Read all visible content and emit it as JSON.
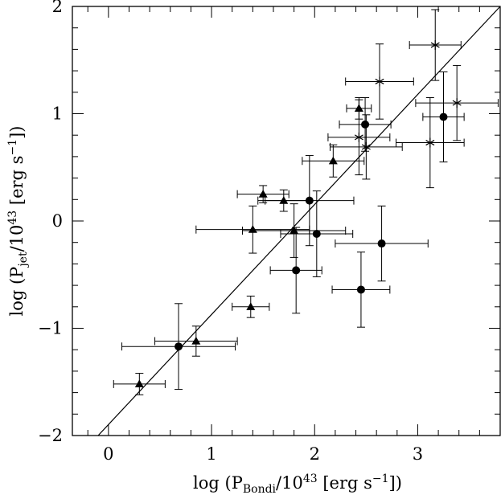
{
  "chart_data": {
    "type": "scatter",
    "xlabel": {
      "pre": "log (P",
      "sub": "Bondi",
      "mid": "/10",
      "sup1": "43",
      "post": " [erg s",
      "sup2": "−1",
      "end": "])"
    },
    "ylabel": {
      "pre": "log (P",
      "sub": "jet",
      "mid": "/10",
      "sup1": "43",
      "post": " [erg s",
      "sup2": "−1",
      "end": "])"
    },
    "xlim": [
      -0.35,
      3.8
    ],
    "ylim": [
      -2,
      2
    ],
    "xticks": [
      {
        "value": 0,
        "label": "0"
      },
      {
        "value": 1,
        "label": "1"
      },
      {
        "value": 2,
        "label": "2"
      },
      {
        "value": 3,
        "label": "3"
      }
    ],
    "yticks": [
      {
        "value": -2,
        "label": "−2"
      },
      {
        "value": -1,
        "label": "−1"
      },
      {
        "value": 0,
        "label": "0"
      },
      {
        "value": 1,
        "label": "1"
      },
      {
        "value": 2,
        "label": "2"
      }
    ],
    "fit_line": {
      "x": [
        -0.1,
        3.8
      ],
      "y": [
        -2.0,
        2.0
      ]
    },
    "series": [
      {
        "marker": "triangle",
        "points": [
          {
            "x": 0.3,
            "y": -1.52,
            "xerr": 0.25,
            "yerr": 0.1
          },
          {
            "x": 0.85,
            "y": -1.12,
            "xerr": 0.4,
            "yerr": 0.14
          },
          {
            "x": 1.38,
            "y": -0.8,
            "xerr": 0.18,
            "yerr": 0.1
          },
          {
            "x": 1.4,
            "y": -0.08,
            "xerr": 0.55,
            "yerr": 0.22
          },
          {
            "x": 1.5,
            "y": 0.25,
            "xerr": 0.25,
            "yerr": 0.08
          },
          {
            "x": 1.7,
            "y": 0.19,
            "xerr": 0.25,
            "yerr": 0.1
          },
          {
            "x": 1.8,
            "y": -0.09,
            "xerr": 0.5,
            "yerr": 0.25
          },
          {
            "x": 2.18,
            "y": 0.56,
            "xerr": 0.3,
            "yerr": 0.15
          },
          {
            "x": 2.43,
            "y": 1.05,
            "xerr": 0.12,
            "yerr": 0.1
          }
        ]
      },
      {
        "marker": "circle",
        "points": [
          {
            "x": 0.68,
            "y": -1.17,
            "xerr": 0.55,
            "yerr": 0.4
          },
          {
            "x": 1.82,
            "y": -0.46,
            "xerr": 0.25,
            "yerr": 0.4
          },
          {
            "x": 1.95,
            "y": 0.19,
            "xerr": 0.43,
            "yerr": 0.42
          },
          {
            "x": 2.02,
            "y": -0.12,
            "xerr": 0.35,
            "yerr": 0.4
          },
          {
            "x": 2.45,
            "y": -0.64,
            "xerr": 0.28,
            "yerr": 0.35
          },
          {
            "x": 2.49,
            "y": 0.9,
            "xerr": 0.25,
            "yerr": 0.25
          },
          {
            "x": 2.65,
            "y": -0.21,
            "xerr": 0.45,
            "yerr": 0.35
          },
          {
            "x": 3.25,
            "y": 0.97,
            "xerr": 0.2,
            "yerr": 0.42
          }
        ]
      },
      {
        "marker": "asterisk",
        "points": [
          {
            "x": 2.43,
            "y": 0.78,
            "xerr": 0.3,
            "yerr": 0.35
          },
          {
            "x": 2.5,
            "y": 0.69,
            "xerr": 0.35,
            "yerr": 0.3
          },
          {
            "x": 2.63,
            "y": 1.3,
            "xerr": 0.33,
            "yerr": 0.35
          },
          {
            "x": 3.12,
            "y": 0.73,
            "xerr": 0.33,
            "yerr": 0.42
          },
          {
            "x": 3.17,
            "y": 1.64,
            "xerr": 0.25,
            "yerr": 0.33
          },
          {
            "x": 3.38,
            "y": 1.1,
            "xerr": 0.4,
            "yerr": 0.35
          }
        ]
      }
    ]
  }
}
